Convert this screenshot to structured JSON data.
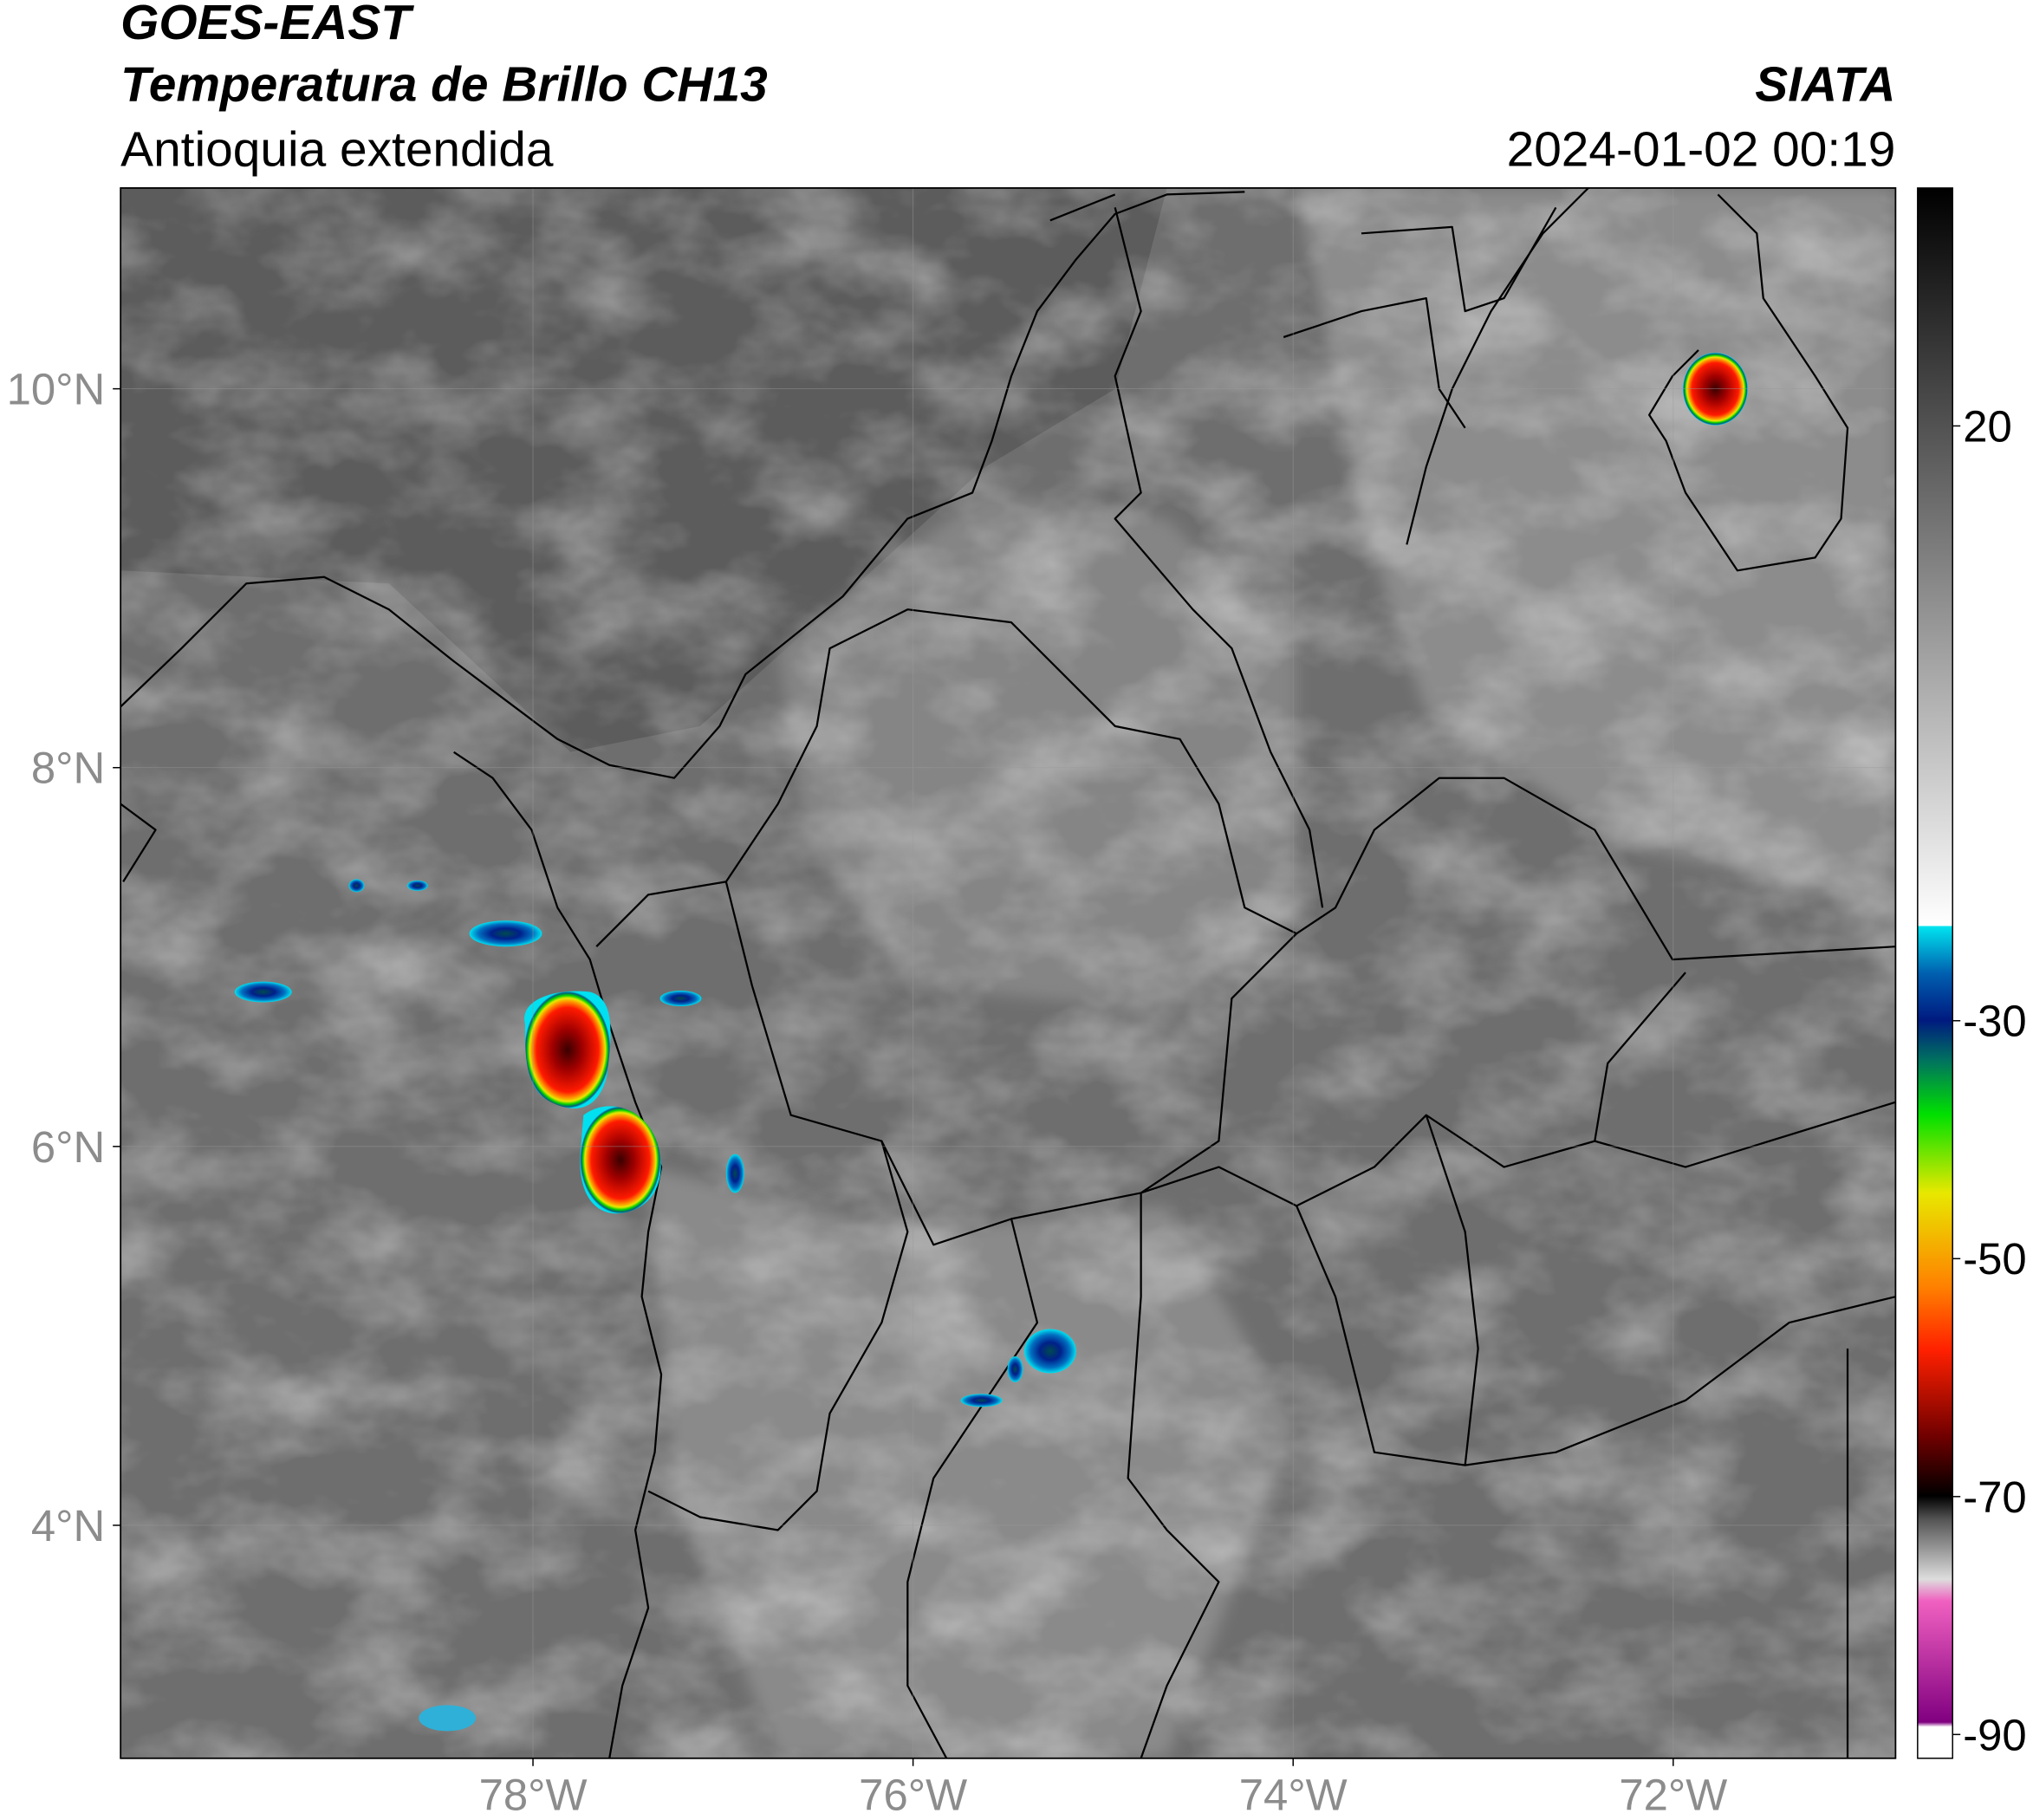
{
  "header": {
    "title": "GOES-EAST",
    "subtitle": "Temperatura de Brillo CH13",
    "region": "Antioquia extendida",
    "source": "SIATA",
    "datetime": "2024-01-02 00:19"
  },
  "map": {
    "lonlim": [
      -80.17,
      -70.83
    ],
    "latlim": [
      2.77,
      11.06
    ],
    "lon_ticks": [
      {
        "value": -78,
        "label": "78°W"
      },
      {
        "value": -76,
        "label": "76°W"
      },
      {
        "value": -74,
        "label": "74°W"
      },
      {
        "value": -72,
        "label": "72°W"
      }
    ],
    "lat_ticks": [
      {
        "value": 4,
        "label": "4°N"
      },
      {
        "value": 6,
        "label": "6°N"
      },
      {
        "value": 8,
        "label": "8°N"
      },
      {
        "value": 10,
        "label": "10°N"
      }
    ]
  },
  "colorbar": {
    "lim": [
      -92,
      40
    ],
    "ticks": [
      -90,
      -70,
      -50,
      -30,
      20
    ]
  }
}
